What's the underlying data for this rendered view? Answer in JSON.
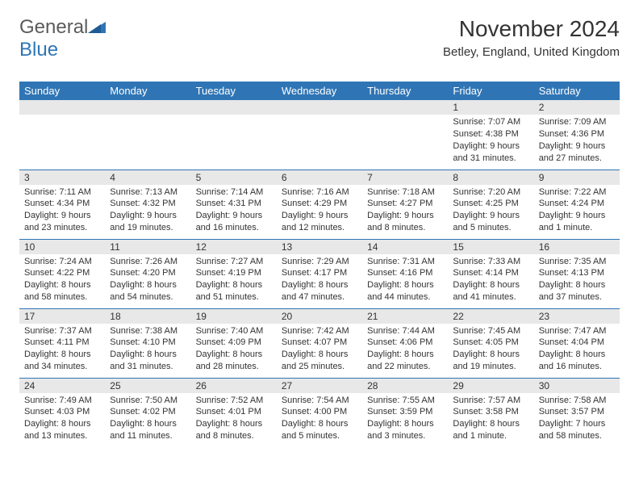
{
  "brand": {
    "part1": "General",
    "part2": "Blue"
  },
  "title": "November 2024",
  "location": "Betley, England, United Kingdom",
  "colors": {
    "header_bg": "#2f75b5",
    "header_text": "#ffffff",
    "day_strip_bg": "#e8e8e8",
    "row_border": "#2f75b5",
    "text": "#333333",
    "logo_gray": "#5b5b5b",
    "logo_blue": "#2f75b5"
  },
  "weekdays": [
    "Sunday",
    "Monday",
    "Tuesday",
    "Wednesday",
    "Thursday",
    "Friday",
    "Saturday"
  ],
  "weeks": [
    [
      null,
      null,
      null,
      null,
      null,
      {
        "n": "1",
        "sunrise": "7:07 AM",
        "sunset": "4:38 PM",
        "daylight": "9 hours and 31 minutes."
      },
      {
        "n": "2",
        "sunrise": "7:09 AM",
        "sunset": "4:36 PM",
        "daylight": "9 hours and 27 minutes."
      }
    ],
    [
      {
        "n": "3",
        "sunrise": "7:11 AM",
        "sunset": "4:34 PM",
        "daylight": "9 hours and 23 minutes."
      },
      {
        "n": "4",
        "sunrise": "7:13 AM",
        "sunset": "4:32 PM",
        "daylight": "9 hours and 19 minutes."
      },
      {
        "n": "5",
        "sunrise": "7:14 AM",
        "sunset": "4:31 PM",
        "daylight": "9 hours and 16 minutes."
      },
      {
        "n": "6",
        "sunrise": "7:16 AM",
        "sunset": "4:29 PM",
        "daylight": "9 hours and 12 minutes."
      },
      {
        "n": "7",
        "sunrise": "7:18 AM",
        "sunset": "4:27 PM",
        "daylight": "9 hours and 8 minutes."
      },
      {
        "n": "8",
        "sunrise": "7:20 AM",
        "sunset": "4:25 PM",
        "daylight": "9 hours and 5 minutes."
      },
      {
        "n": "9",
        "sunrise": "7:22 AM",
        "sunset": "4:24 PM",
        "daylight": "9 hours and 1 minute."
      }
    ],
    [
      {
        "n": "10",
        "sunrise": "7:24 AM",
        "sunset": "4:22 PM",
        "daylight": "8 hours and 58 minutes."
      },
      {
        "n": "11",
        "sunrise": "7:26 AM",
        "sunset": "4:20 PM",
        "daylight": "8 hours and 54 minutes."
      },
      {
        "n": "12",
        "sunrise": "7:27 AM",
        "sunset": "4:19 PM",
        "daylight": "8 hours and 51 minutes."
      },
      {
        "n": "13",
        "sunrise": "7:29 AM",
        "sunset": "4:17 PM",
        "daylight": "8 hours and 47 minutes."
      },
      {
        "n": "14",
        "sunrise": "7:31 AM",
        "sunset": "4:16 PM",
        "daylight": "8 hours and 44 minutes."
      },
      {
        "n": "15",
        "sunrise": "7:33 AM",
        "sunset": "4:14 PM",
        "daylight": "8 hours and 41 minutes."
      },
      {
        "n": "16",
        "sunrise": "7:35 AM",
        "sunset": "4:13 PM",
        "daylight": "8 hours and 37 minutes."
      }
    ],
    [
      {
        "n": "17",
        "sunrise": "7:37 AM",
        "sunset": "4:11 PM",
        "daylight": "8 hours and 34 minutes."
      },
      {
        "n": "18",
        "sunrise": "7:38 AM",
        "sunset": "4:10 PM",
        "daylight": "8 hours and 31 minutes."
      },
      {
        "n": "19",
        "sunrise": "7:40 AM",
        "sunset": "4:09 PM",
        "daylight": "8 hours and 28 minutes."
      },
      {
        "n": "20",
        "sunrise": "7:42 AM",
        "sunset": "4:07 PM",
        "daylight": "8 hours and 25 minutes."
      },
      {
        "n": "21",
        "sunrise": "7:44 AM",
        "sunset": "4:06 PM",
        "daylight": "8 hours and 22 minutes."
      },
      {
        "n": "22",
        "sunrise": "7:45 AM",
        "sunset": "4:05 PM",
        "daylight": "8 hours and 19 minutes."
      },
      {
        "n": "23",
        "sunrise": "7:47 AM",
        "sunset": "4:04 PM",
        "daylight": "8 hours and 16 minutes."
      }
    ],
    [
      {
        "n": "24",
        "sunrise": "7:49 AM",
        "sunset": "4:03 PM",
        "daylight": "8 hours and 13 minutes."
      },
      {
        "n": "25",
        "sunrise": "7:50 AM",
        "sunset": "4:02 PM",
        "daylight": "8 hours and 11 minutes."
      },
      {
        "n": "26",
        "sunrise": "7:52 AM",
        "sunset": "4:01 PM",
        "daylight": "8 hours and 8 minutes."
      },
      {
        "n": "27",
        "sunrise": "7:54 AM",
        "sunset": "4:00 PM",
        "daylight": "8 hours and 5 minutes."
      },
      {
        "n": "28",
        "sunrise": "7:55 AM",
        "sunset": "3:59 PM",
        "daylight": "8 hours and 3 minutes."
      },
      {
        "n": "29",
        "sunrise": "7:57 AM",
        "sunset": "3:58 PM",
        "daylight": "8 hours and 1 minute."
      },
      {
        "n": "30",
        "sunrise": "7:58 AM",
        "sunset": "3:57 PM",
        "daylight": "7 hours and 58 minutes."
      }
    ]
  ],
  "labels": {
    "sunrise": "Sunrise:",
    "sunset": "Sunset:",
    "daylight": "Daylight:"
  }
}
